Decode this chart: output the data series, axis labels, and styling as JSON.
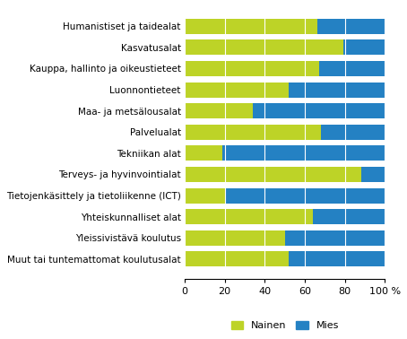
{
  "categories": [
    "Humanistiset ja taidealat",
    "Kasvatusalat",
    "Kauppa, hallinto ja oikeustieteet",
    "Luonnontieteet",
    "Maa- ja metsätalousalat",
    "Palvelualat",
    "Tekniikan alat",
    "Terveys- ja hyvinvointialat",
    "Tietojenkäsittely ja tietoliikenne (ICT)",
    "Yhteiskunnalliset alat",
    "Yleissivistävä koulutus",
    "Muut tai tuntemattomat koulutusalat"
  ],
  "nainen": [
    66,
    79,
    67,
    52,
    34,
    68,
    19,
    88,
    20,
    64,
    50,
    52
  ],
  "mies": [
    34,
    21,
    33,
    48,
    66,
    32,
    81,
    12,
    80,
    36,
    50,
    48
  ],
  "color_nainen": "#bdd327",
  "color_mies": "#2481c3",
  "legend_nainen": "Nainen",
  "legend_mies": "Mies",
  "xlabel_vals": [
    0,
    20,
    40,
    60,
    80,
    100
  ],
  "xlabel_labels": [
    "0",
    "20",
    "40",
    "60",
    "80",
    "100 %"
  ],
  "background": "#ffffff",
  "bar_height": 0.72,
  "fontsize_yticks": 7.5,
  "fontsize_xticks": 8,
  "fontsize_legend": 8
}
